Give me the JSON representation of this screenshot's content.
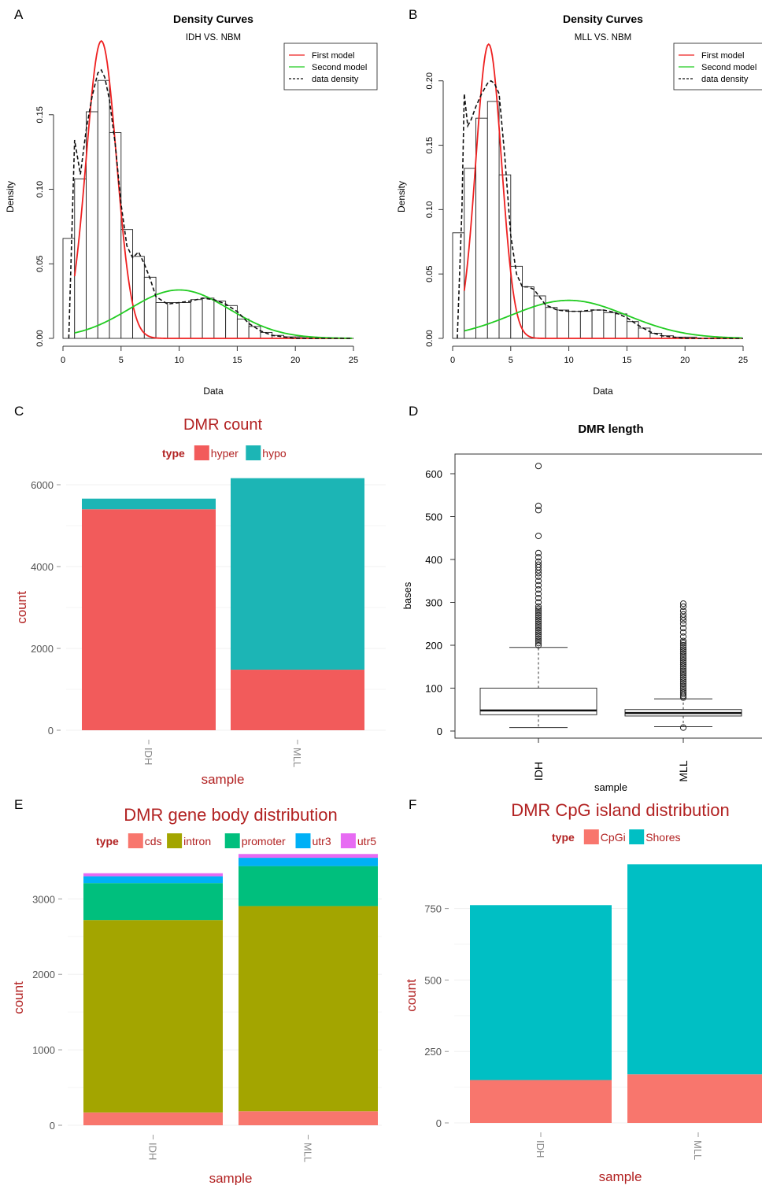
{
  "colors": {
    "red_model": "#ee2020",
    "green_model": "#22cc22",
    "hyper": "#f25b5b",
    "hypo": "#1cb5b5",
    "cds": "#f8766d",
    "intron": "#a3a500",
    "promoter": "#00bf7d",
    "utr3": "#00b0f6",
    "utr5": "#e76bf3",
    "cpgi": "#f8766d",
    "shores": "#00bfc4",
    "title_red": "#b22222"
  },
  "chart_data": [
    {
      "panel": "A",
      "type": "bar",
      "title": "Density Curves",
      "subtitle": "IDH VS. NBM",
      "xlabel": "Data",
      "ylabel": "Density",
      "xlim": [
        0,
        25
      ],
      "ylim": [
        0,
        0.19
      ],
      "xticks": [
        "0",
        "5",
        "10",
        "15",
        "20",
        "25"
      ],
      "yticks": [
        "0.00",
        "0.05",
        "0.10",
        "0.15"
      ],
      "bin_width": 1,
      "bin_start": 0,
      "values": [
        0.067,
        0.107,
        0.152,
        0.173,
        0.138,
        0.073,
        0.055,
        0.041,
        0.024,
        0.024,
        0.024,
        0.026,
        0.027,
        0.025,
        0.022,
        0.013,
        0.008,
        0.004,
        0.002,
        0.001,
        0.001,
        0.0,
        0.0,
        0.0,
        0.0
      ],
      "legend": [
        "First model",
        "Second model",
        "data density"
      ],
      "legend_position": "top-right",
      "first_model": {
        "mean": 3.3,
        "sd": 1.3,
        "weight": 0.65
      },
      "second_model": {
        "mean": 10.0,
        "sd": 4.3,
        "weight": 0.35
      },
      "data_density_x": [
        0.5,
        0.8,
        1.0,
        1.5,
        2.0,
        2.5,
        3.0,
        3.3,
        3.6,
        4.0,
        4.5,
        5.0,
        5.5,
        6.0,
        6.5,
        7.0,
        7.5,
        8.0,
        9.0,
        10.0,
        11.0,
        12.0,
        13.0,
        14.0,
        15.0,
        16.0,
        17.0,
        18.0,
        19.0,
        20.0,
        21.0,
        25.0
      ],
      "data_density_y": [
        0.0,
        0.08,
        0.133,
        0.11,
        0.14,
        0.162,
        0.178,
        0.18,
        0.175,
        0.16,
        0.13,
        0.09,
        0.062,
        0.054,
        0.058,
        0.05,
        0.04,
        0.028,
        0.023,
        0.024,
        0.025,
        0.027,
        0.026,
        0.023,
        0.018,
        0.01,
        0.005,
        0.002,
        0.001,
        0.0,
        0.0,
        0.0
      ]
    },
    {
      "panel": "B",
      "type": "bar",
      "title": "Density Curves",
      "subtitle": "MLL VS. NBM",
      "xlabel": "Data",
      "ylabel": "Density",
      "xlim": [
        0,
        25
      ],
      "ylim": [
        0,
        0.22
      ],
      "xticks": [
        "0",
        "5",
        "10",
        "15",
        "20",
        "25"
      ],
      "yticks": [
        "0.00",
        "0.05",
        "0.10",
        "0.15",
        "0.20"
      ],
      "bin_width": 1,
      "bin_start": 0,
      "values": [
        0.082,
        0.132,
        0.171,
        0.184,
        0.127,
        0.056,
        0.04,
        0.033,
        0.024,
        0.022,
        0.021,
        0.021,
        0.022,
        0.02,
        0.019,
        0.013,
        0.008,
        0.004,
        0.002,
        0.001,
        0.001,
        0.0,
        0.0,
        0.0,
        0.0
      ],
      "legend": [
        "First model",
        "Second model",
        "data density"
      ],
      "legend_position": "top-right",
      "first_model": {
        "mean": 3.1,
        "sd": 1.1,
        "weight": 0.63
      },
      "second_model": {
        "mean": 10.0,
        "sd": 5.0,
        "weight": 0.37
      },
      "data_density_x": [
        0.4,
        0.8,
        1.0,
        1.3,
        1.6,
        2.0,
        2.5,
        3.0,
        3.3,
        3.6,
        4.0,
        4.5,
        5.0,
        5.5,
        6.0,
        6.5,
        7.0,
        7.5,
        8.0,
        9.0,
        10.0,
        11.0,
        12.0,
        13.0,
        14.0,
        15.0,
        16.0,
        17.0,
        18.0,
        19.0,
        20.0,
        25.0
      ],
      "data_density_y": [
        0.0,
        0.1,
        0.19,
        0.165,
        0.17,
        0.18,
        0.19,
        0.198,
        0.2,
        0.198,
        0.19,
        0.14,
        0.08,
        0.05,
        0.04,
        0.04,
        0.038,
        0.032,
        0.026,
        0.022,
        0.021,
        0.021,
        0.022,
        0.022,
        0.02,
        0.016,
        0.01,
        0.005,
        0.002,
        0.001,
        0.0,
        0.0
      ]
    },
    {
      "panel": "C",
      "type": "bar",
      "stacked": true,
      "title": "DMR count",
      "legend_title": "type",
      "xlabel": "sample",
      "ylabel": "count",
      "categories": [
        "IDH",
        "MLL"
      ],
      "series": [
        {
          "name": "hyper",
          "values": [
            5400,
            1480
          ]
        },
        {
          "name": "hypo",
          "values": [
            260,
            4680
          ]
        }
      ],
      "ylim": [
        0,
        6500
      ],
      "yticks": [
        0,
        2000,
        4000,
        6000
      ],
      "legend_position": "top"
    },
    {
      "panel": "D",
      "type": "box",
      "title": "DMR length",
      "xlabel": "sample",
      "ylabel": "bases",
      "categories": [
        "IDH",
        "MLL"
      ],
      "ylim": [
        0,
        640
      ],
      "yticks": [
        0,
        100,
        200,
        300,
        400,
        500,
        600
      ],
      "boxes": [
        {
          "name": "IDH",
          "min": 8,
          "q1": 38,
          "median": 48,
          "q3": 100,
          "max": 195,
          "outliers": [
            200,
            205,
            210,
            215,
            220,
            225,
            230,
            235,
            240,
            245,
            250,
            255,
            260,
            265,
            270,
            275,
            280,
            285,
            290,
            300,
            310,
            320,
            330,
            340,
            350,
            360,
            368,
            375,
            382,
            388,
            395,
            405,
            415,
            455,
            515,
            525,
            618
          ]
        },
        {
          "name": "MLL",
          "min": 10,
          "q1": 35,
          "median": 42,
          "q3": 50,
          "max": 75,
          "outliers": [
            8,
            78,
            82,
            86,
            90,
            95,
            100,
            105,
            110,
            115,
            120,
            125,
            130,
            135,
            140,
            145,
            150,
            155,
            160,
            165,
            170,
            175,
            180,
            185,
            190,
            195,
            200,
            205,
            210,
            220,
            230,
            240,
            250,
            258,
            265,
            272,
            280,
            290,
            297
          ]
        }
      ]
    },
    {
      "panel": "E",
      "type": "bar",
      "stacked": true,
      "title": "DMR gene body distribution",
      "legend_title": "type",
      "xlabel": "sample",
      "ylabel": "count",
      "categories": [
        "IDH",
        "MLL"
      ],
      "series": [
        {
          "name": "cds",
          "values": [
            170,
            185
          ]
        },
        {
          "name": "intron",
          "values": [
            2550,
            2720
          ]
        },
        {
          "name": "promoter",
          "values": [
            490,
            530
          ]
        },
        {
          "name": "utr3",
          "values": [
            90,
            110
          ]
        },
        {
          "name": "utr5",
          "values": [
            40,
            50
          ]
        }
      ],
      "ylim": [
        0,
        3650
      ],
      "yticks": [
        0,
        1000,
        2000,
        3000
      ],
      "legend_position": "top"
    },
    {
      "panel": "F",
      "type": "bar",
      "stacked": true,
      "title": "DMR CpG island distribution",
      "legend_title": "type",
      "xlabel": "sample",
      "ylabel": "count",
      "categories": [
        "IDH",
        "MLL"
      ],
      "series": [
        {
          "name": "CpGi",
          "values": [
            150,
            170
          ]
        },
        {
          "name": "Shores",
          "values": [
            612,
            735
          ]
        }
      ],
      "ylim": [
        0,
        950
      ],
      "yticks": [
        0,
        250,
        500,
        750
      ],
      "legend_position": "top"
    }
  ],
  "panel_labels": [
    "A",
    "B",
    "C",
    "D",
    "E",
    "F"
  ]
}
